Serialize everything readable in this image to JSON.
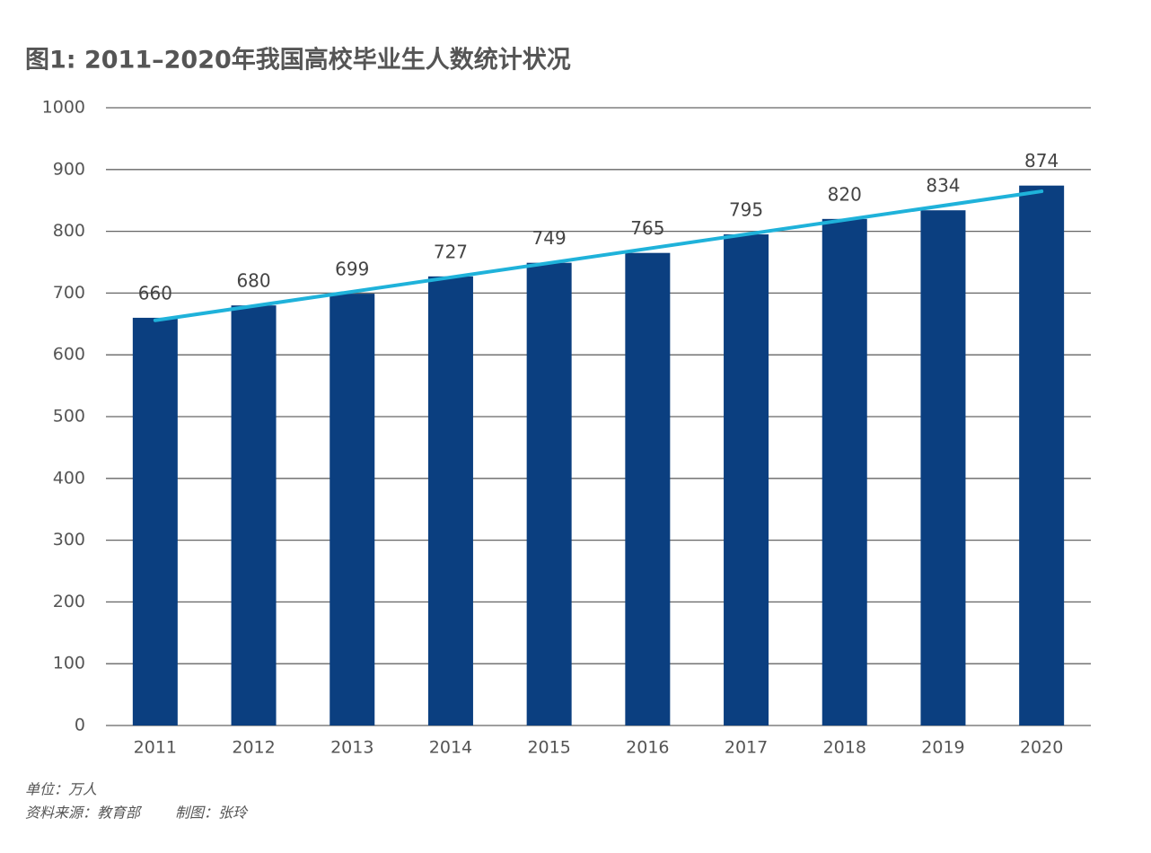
{
  "chart_data": {
    "type": "bar",
    "title": "图1: 2011–2020年我国高校毕业生人数统计状况",
    "categories": [
      "2011",
      "2012",
      "2013",
      "2014",
      "2015",
      "2016",
      "2017",
      "2018",
      "2019",
      "2020"
    ],
    "values": [
      660,
      680,
      699,
      727,
      749,
      765,
      795,
      820,
      834,
      874
    ],
    "color": "#0b3f80",
    "ylim": [
      0,
      1000
    ],
    "yticks": [
      0,
      100,
      200,
      300,
      400,
      500,
      600,
      700,
      800,
      900,
      1000
    ],
    "grid": true,
    "trendline": {
      "type": "linear",
      "color": "#1fb2da"
    },
    "notes": [
      "单位：万人",
      "资料来源：教育部",
      "制图：张玲"
    ]
  }
}
